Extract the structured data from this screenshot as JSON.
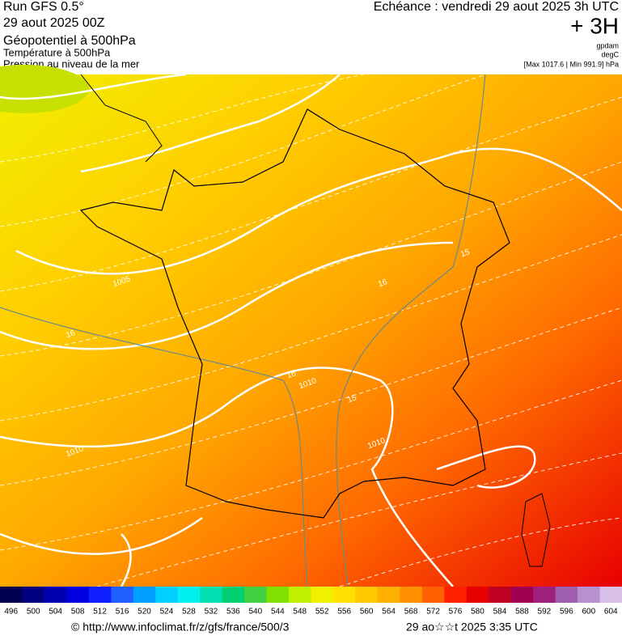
{
  "header": {
    "run": "Run GFS 0.5°",
    "date": "29 aout 2025 00Z",
    "field1": "Géopotentiel à 500hPa",
    "field2": "Température à 500hPa",
    "field3": "Pression au niveau de la mer",
    "echeance": "Echéance : vendredi 29 aout 2025 3h UTC",
    "offset": "+ 3H",
    "unit1": "gpdam",
    "unit2": "degC",
    "pressure_range": "[Max 1017.6 | Min 991.9] hPa"
  },
  "map_labels": [
    "1005",
    "16",
    "1010",
    "1010",
    "1010",
    "15",
    "16",
    "15",
    "16"
  ],
  "colorbar": {
    "labels": [
      496,
      500,
      504,
      508,
      512,
      516,
      520,
      524,
      528,
      532,
      536,
      540,
      544,
      548,
      552,
      556,
      560,
      564,
      568,
      572,
      576,
      580,
      584,
      588,
      592,
      596,
      600,
      604
    ],
    "colors": [
      "#000050",
      "#000080",
      "#0000b0",
      "#0000e0",
      "#1020ff",
      "#2060ff",
      "#00a0ff",
      "#00d0ff",
      "#00f0f0",
      "#00e0b0",
      "#00d070",
      "#40d040",
      "#80e000",
      "#c0f000",
      "#f0f000",
      "#ffe000",
      "#ffc800",
      "#ffb000",
      "#ff9000",
      "#ff6000",
      "#ff2000",
      "#e80000",
      "#c00020",
      "#a00050",
      "#a02080",
      "#a060b0",
      "#b890d0",
      "#d8c0e8"
    ]
  },
  "footer": {
    "source": "© http://www.infoclimat.fr/z/gfs/france/500/3",
    "timestamp": "29 ao☆☆t 2025  3:35 UTC"
  }
}
